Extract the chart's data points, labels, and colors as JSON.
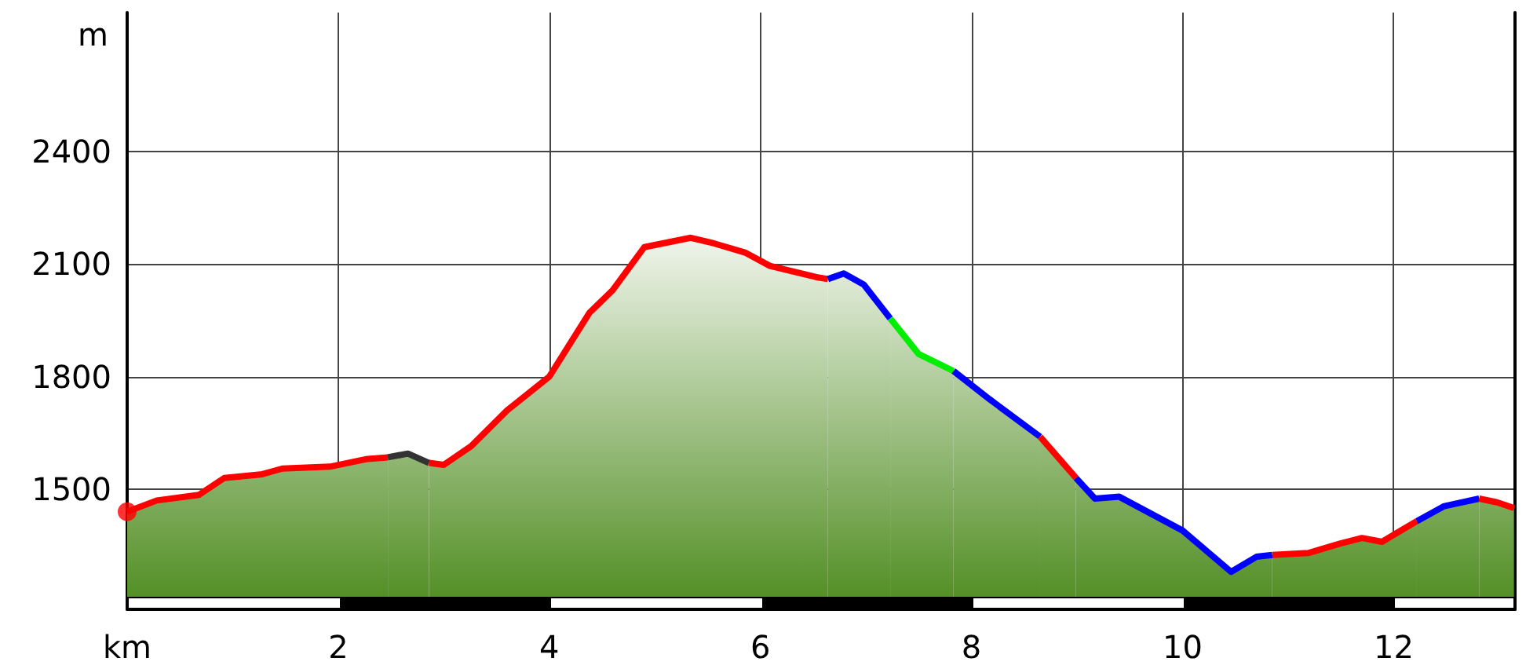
{
  "chart_data": {
    "type": "area",
    "xlabel": "km",
    "ylabel": "m",
    "xlim": [
      0,
      13.15
    ],
    "xticks": [
      2,
      4,
      6,
      8,
      10,
      12
    ],
    "ylim": [
      1180,
      2770
    ],
    "yticks": [
      1500,
      1800,
      2100,
      2400
    ],
    "color": "#4e8c1f",
    "grid": true,
    "marker": "none",
    "line_style": "solid",
    "series": [
      {
        "color": "#ff0000",
        "x": [
          0,
          0.28,
          0.68,
          0.92,
          1.28,
          1.47,
          1.92,
          2.26,
          2.47
        ],
        "values": [
          1440,
          1470,
          1485,
          1530,
          1540,
          1555,
          1560,
          1580,
          1585
        ]
      },
      {
        "color": "#333333",
        "x": [
          2.47,
          2.66,
          2.86
        ],
        "values": [
          1585,
          1595,
          1570
        ]
      },
      {
        "color": "#ff0000",
        "x": [
          2.86,
          3.0,
          3.26,
          3.6,
          4.0,
          4.38,
          4.6,
          4.9,
          5.34,
          5.56,
          5.86,
          6.09,
          6.53,
          6.64
        ],
        "values": [
          1570,
          1565,
          1615,
          1710,
          1800,
          1970,
          2030,
          2145,
          2170,
          2155,
          2130,
          2095,
          2065,
          2060
        ]
      },
      {
        "color": "#0000ff",
        "x": [
          6.64,
          6.79,
          6.98,
          7.23
        ],
        "values": [
          2060,
          2075,
          2045,
          1955
        ]
      },
      {
        "color": "#00ee00",
        "x": [
          7.23,
          7.5,
          7.83
        ],
        "values": [
          1955,
          1860,
          1815
        ]
      },
      {
        "color": "#0000ff",
        "x": [
          7.83,
          8.17,
          8.65
        ],
        "values": [
          1815,
          1740,
          1640
        ]
      },
      {
        "color": "#ff0000",
        "x": [
          8.65,
          8.99
        ],
        "values": [
          1640,
          1530
        ]
      },
      {
        "color": "#0000ff",
        "x": [
          8.99,
          9.17,
          9.4,
          9.7,
          10.0,
          10.25,
          10.46,
          10.7,
          10.85
        ],
        "values": [
          1530,
          1475,
          1480,
          1435,
          1390,
          1330,
          1280,
          1320,
          1325
        ]
      },
      {
        "color": "#ff0000",
        "x": [
          10.85,
          11.19,
          11.49,
          11.7,
          11.89,
          12.04,
          12.22
        ],
        "values": [
          1325,
          1330,
          1355,
          1370,
          1360,
          1385,
          1415
        ]
      },
      {
        "color": "#0000ff",
        "x": [
          12.22,
          12.48,
          12.81
        ],
        "values": [
          1415,
          1455,
          1475
        ]
      },
      {
        "color": "#ff0000",
        "x": [
          12.81,
          12.98,
          13.14
        ],
        "values": [
          1475,
          1465,
          1450
        ]
      },
      {
        "type": "scatter",
        "marker": "circle",
        "color": "#ff0000",
        "x": [
          0
        ],
        "values": [
          1440
        ]
      }
    ]
  }
}
